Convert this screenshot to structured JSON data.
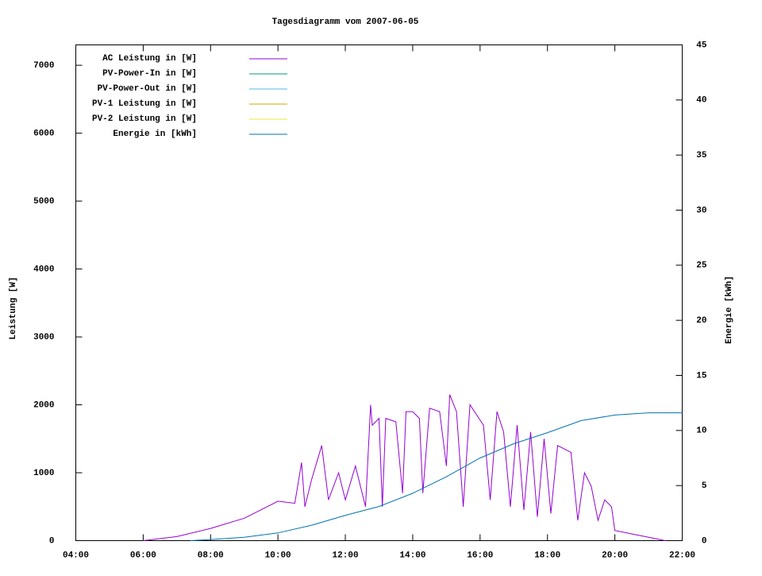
{
  "chart_data": {
    "type": "line",
    "title": "Tagesdiagramm vom 2007-06-05",
    "ylabel": "Leistung [W]",
    "y2label": "Energie [kWh]",
    "xlim": [
      4,
      22
    ],
    "xticks": [
      {
        "value": 4,
        "label": "04:00"
      },
      {
        "value": 6,
        "label": "06:00"
      },
      {
        "value": 8,
        "label": "08:00"
      },
      {
        "value": 10,
        "label": "10:00"
      },
      {
        "value": 12,
        "label": "12:00"
      },
      {
        "value": 14,
        "label": "14:00"
      },
      {
        "value": 16,
        "label": "16:00"
      },
      {
        "value": 18,
        "label": "18:00"
      },
      {
        "value": 20,
        "label": "20:00"
      },
      {
        "value": 22,
        "label": "22:00"
      }
    ],
    "ylim": [
      0,
      7300
    ],
    "yticks": [
      0,
      1000,
      2000,
      3000,
      4000,
      5000,
      6000,
      7000
    ],
    "y2lim": [
      0,
      45
    ],
    "y2ticks": [
      0,
      5,
      10,
      15,
      20,
      25,
      30,
      35,
      40,
      45
    ],
    "series": [
      {
        "name": "AC Leistung in [W]",
        "color": "#9400d3",
        "x": [
          6.0,
          7.0,
          8.0,
          9.0,
          10.0,
          10.5,
          10.7,
          10.8,
          11.0,
          11.3,
          11.5,
          11.8,
          12.0,
          12.3,
          12.6,
          12.75,
          12.8,
          13.0,
          13.1,
          13.2,
          13.5,
          13.7,
          13.8,
          14.0,
          14.2,
          14.3,
          14.5,
          14.8,
          15.0,
          15.1,
          15.3,
          15.5,
          15.7,
          15.9,
          16.1,
          16.3,
          16.5,
          16.7,
          16.9,
          17.1,
          17.3,
          17.5,
          17.7,
          17.9,
          18.1,
          18.3,
          18.5,
          18.7,
          18.9,
          19.1,
          19.3,
          19.5,
          19.7,
          19.9,
          20.0,
          20.5,
          21.0,
          21.5
        ],
        "values": [
          0,
          60,
          180,
          330,
          580,
          550,
          1150,
          500,
          900,
          1400,
          600,
          1000,
          600,
          1100,
          500,
          2000,
          1700,
          1800,
          500,
          1800,
          1750,
          700,
          1900,
          1900,
          1800,
          700,
          1950,
          1900,
          1100,
          2150,
          1900,
          500,
          2000,
          1850,
          1700,
          600,
          1900,
          1600,
          500,
          1700,
          450,
          1600,
          350,
          1500,
          400,
          1400,
          1350,
          1300,
          300,
          1000,
          800,
          300,
          600,
          500,
          150,
          100,
          50,
          0
        ]
      },
      {
        "name": "PV-Power-In in [W]",
        "color": "#009e73",
        "x": [],
        "values": []
      },
      {
        "name": "PV-Power-Out in [W]",
        "color": "#56b4e9",
        "x": [],
        "values": []
      },
      {
        "name": "PV-1 Leistung in [W]",
        "color": "#e69f00",
        "x": [],
        "values": []
      },
      {
        "name": "PV-2 Leistung in [W]",
        "color": "#f0e442",
        "x": [],
        "values": []
      },
      {
        "name": "Energie in [kWh]",
        "color": "#0072b2",
        "axis": "y2",
        "x": [
          7.4,
          8.0,
          9.0,
          10.0,
          11.0,
          12.0,
          13.0,
          14.0,
          15.0,
          16.0,
          17.0,
          18.0,
          19.0,
          20.0,
          21.0,
          22.0
        ],
        "values": [
          0,
          0.1,
          0.3,
          0.7,
          1.4,
          2.3,
          3.1,
          4.3,
          5.8,
          7.5,
          8.8,
          9.8,
          10.9,
          11.4,
          11.6,
          11.6
        ]
      }
    ]
  }
}
